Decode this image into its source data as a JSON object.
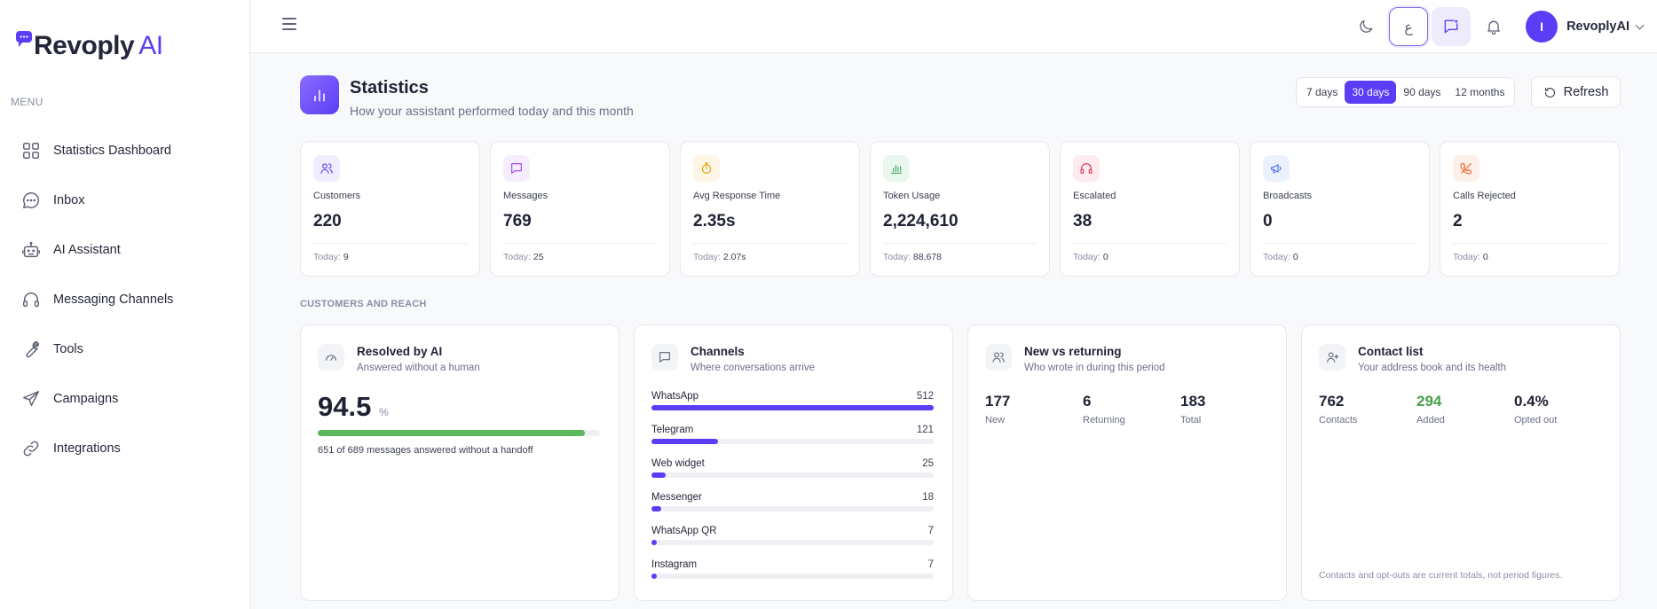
{
  "brand": {
    "name": "Revoply",
    "suffix": "AI"
  },
  "sidebar": {
    "menu_label": "MENU",
    "items": [
      {
        "label": "Statistics Dashboard",
        "icon": "grid-icon"
      },
      {
        "label": "Inbox",
        "icon": "chat-bubble-icon"
      },
      {
        "label": "AI Assistant",
        "icon": "robot-icon"
      },
      {
        "label": "Messaging Channels",
        "icon": "headset-icon"
      },
      {
        "label": "Tools",
        "icon": "wrench-icon"
      },
      {
        "label": "Campaigns",
        "icon": "send-icon"
      },
      {
        "label": "Integrations",
        "icon": "link-icon"
      }
    ]
  },
  "topbar": {
    "language_glyph": "ع",
    "user": {
      "initial": "I",
      "name": "RevoplyAI"
    }
  },
  "header": {
    "title": "Statistics",
    "subtitle": "How your assistant performed today and this month",
    "ranges": [
      "7 days",
      "30 days",
      "90 days",
      "12 months"
    ],
    "active_range": "30 days",
    "refresh_label": "Refresh"
  },
  "stats": [
    {
      "label": "Customers",
      "value": "220",
      "today_label": "Today:",
      "today": "9",
      "icon": "users-icon",
      "color": "#5b3df5",
      "bg": "#efedfe"
    },
    {
      "label": "Messages",
      "value": "769",
      "today_label": "Today:",
      "today": "25",
      "icon": "message-icon",
      "color": "#a33df5",
      "bg": "#f6edfe"
    },
    {
      "label": "Avg Response Time",
      "value": "2.35s",
      "today_label": "Today:",
      "today": "2.07s",
      "icon": "stopwatch-icon",
      "color": "#e0a000",
      "bg": "#fdf6e6"
    },
    {
      "label": "Token Usage",
      "value": "2,224,610",
      "today_label": "Today:",
      "today": "88,678",
      "icon": "bar-chart-icon",
      "color": "#3aa655",
      "bg": "#eaf7ee"
    },
    {
      "label": "Escalated",
      "value": "38",
      "today_label": "Today:",
      "today": "0",
      "icon": "headset-icon",
      "color": "#e0335a",
      "bg": "#fdebef"
    },
    {
      "label": "Broadcasts",
      "value": "0",
      "today_label": "Today:",
      "today": "0",
      "icon": "megaphone-icon",
      "color": "#3d6ef5",
      "bg": "#ecf1fe"
    },
    {
      "label": "Calls Rejected",
      "value": "2",
      "today_label": "Today:",
      "today": "0",
      "icon": "phone-off-icon",
      "color": "#ee6a2c",
      "bg": "#fdf0e9"
    }
  ],
  "section_label": "CUSTOMERS AND REACH",
  "resolved": {
    "title": "Resolved by AI",
    "subtitle": "Answered without a human",
    "value": "94.5",
    "unit": "%",
    "progress": 0.945,
    "note": "651 of 689 messages answered without a handoff"
  },
  "channels": {
    "title": "Channels",
    "subtitle": "Where conversations arrive",
    "items": [
      {
        "name": "WhatsApp",
        "value": 512
      },
      {
        "name": "Telegram",
        "value": 121
      },
      {
        "name": "Web widget",
        "value": 25
      },
      {
        "name": "Messenger",
        "value": 18
      },
      {
        "name": "WhatsApp QR",
        "value": 7
      },
      {
        "name": "Instagram",
        "value": 7
      }
    ]
  },
  "new_vs_returning": {
    "title": "New vs returning",
    "subtitle": "Who wrote in during this period",
    "metrics": [
      {
        "value": "177",
        "label": "New"
      },
      {
        "value": "6",
        "label": "Returning"
      },
      {
        "value": "183",
        "label": "Total"
      }
    ]
  },
  "contacts": {
    "title": "Contact list",
    "subtitle": "Your address book and its health",
    "metrics": [
      {
        "value": "762",
        "label": "Contacts"
      },
      {
        "value": "294",
        "label": "Added"
      },
      {
        "value": "0.4%",
        "label": "Opted out"
      }
    ],
    "footnote": "Contacts and opt-outs are current totals, not period figures."
  }
}
